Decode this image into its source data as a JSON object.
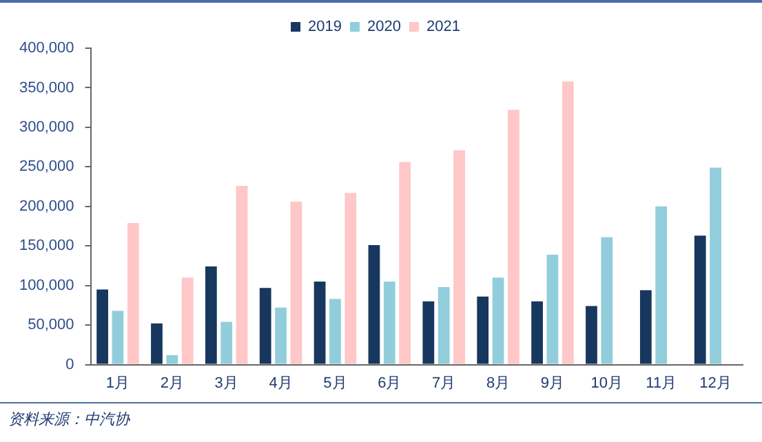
{
  "chart_data": {
    "type": "bar",
    "categories": [
      "1月",
      "2月",
      "3月",
      "4月",
      "5月",
      "6月",
      "7月",
      "8月",
      "9月",
      "10月",
      "11月",
      "12月"
    ],
    "series": [
      {
        "name": "2019",
        "color": "#17375e",
        "values": [
          95000,
          52000,
          124000,
          97000,
          105000,
          151000,
          80000,
          86000,
          80000,
          74000,
          94000,
          163000
        ]
      },
      {
        "name": "2020",
        "color": "#92cddc",
        "values": [
          68000,
          12000,
          54000,
          72000,
          83000,
          105000,
          98000,
          110000,
          139000,
          161000,
          200000,
          249000
        ]
      },
      {
        "name": "2021",
        "color": "#ffc7c7",
        "values": [
          179000,
          110000,
          226000,
          206000,
          217000,
          256000,
          271000,
          322000,
          358000,
          null,
          null,
          null
        ]
      }
    ],
    "ylim": [
      0,
      400000
    ],
    "yticks": [
      {
        "value": 0,
        "label": "0"
      },
      {
        "value": 50000,
        "label": "50,000"
      },
      {
        "value": 100000,
        "label": "100,000"
      },
      {
        "value": 150000,
        "label": "150,000"
      },
      {
        "value": 200000,
        "label": "200,000"
      },
      {
        "value": 250000,
        "label": "250,000"
      },
      {
        "value": 300000,
        "label": "300,000"
      },
      {
        "value": 350000,
        "label": "350,000"
      },
      {
        "value": 400000,
        "label": "400,000"
      }
    ],
    "legend": "top",
    "grid": false,
    "annotations": [
      "资料来源：中汽协"
    ]
  }
}
